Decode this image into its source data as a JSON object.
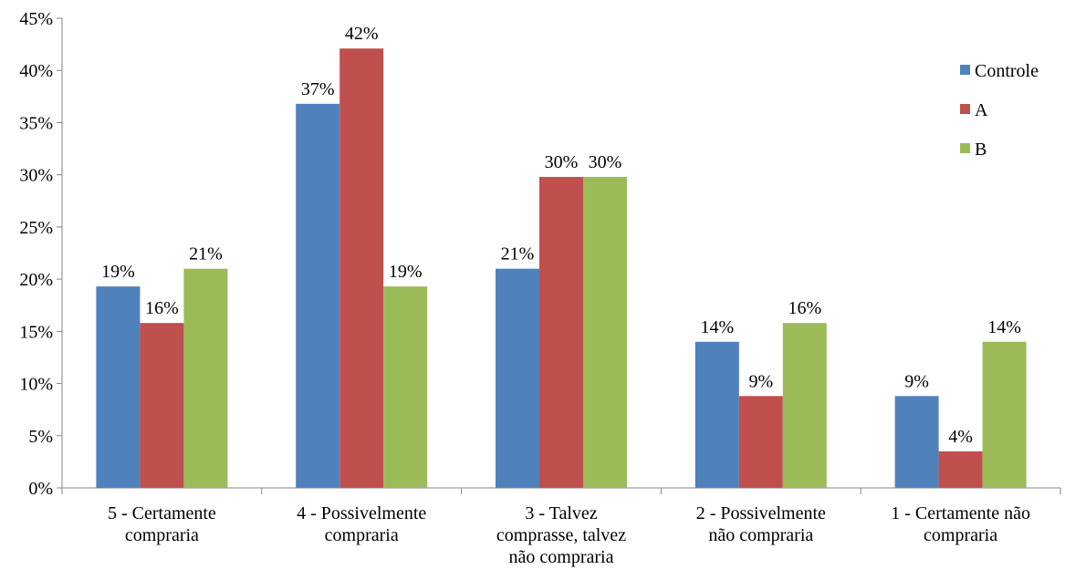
{
  "chart_data": {
    "type": "bar",
    "title": "",
    "xlabel": "",
    "ylabel": "",
    "ylim": [
      0,
      45
    ],
    "y_tick_labels": [
      "0%",
      "5%",
      "10%",
      "15%",
      "20%",
      "25%",
      "30%",
      "35%",
      "40%",
      "45%"
    ],
    "grid": false,
    "legend_position": "right",
    "categories": [
      [
        "5 - Certamente",
        "compraria"
      ],
      [
        "4 - Possivelmente",
        "compraria"
      ],
      [
        "3 - Talvez",
        "comprasse, talvez",
        "não compraria"
      ],
      [
        "2 - Possivelmente",
        "não compraria"
      ],
      [
        "1 - Certamente não",
        "compraria"
      ]
    ],
    "series": [
      {
        "name": "Controle",
        "color": "#4F81BD",
        "values": [
          19.3,
          36.8,
          21.0,
          14.0,
          8.8
        ],
        "labels": [
          "19%",
          "37%",
          "21%",
          "14%",
          "9%"
        ]
      },
      {
        "name": "A",
        "color": "#C0504D",
        "values": [
          15.8,
          42.1,
          29.8,
          8.8,
          3.5
        ],
        "labels": [
          "16%",
          "42%",
          "30%",
          "9%",
          "4%"
        ]
      },
      {
        "name": "B",
        "color": "#9BBB59",
        "values": [
          21.0,
          19.3,
          29.8,
          15.8,
          14.0
        ],
        "labels": [
          "21%",
          "19%",
          "30%",
          "16%",
          "14%"
        ]
      }
    ]
  }
}
